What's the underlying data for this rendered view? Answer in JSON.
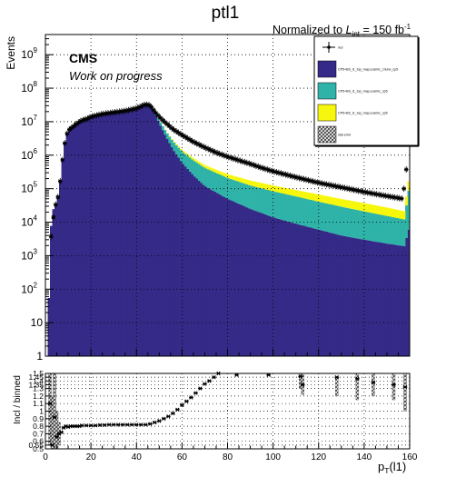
{
  "title": "ptl1",
  "lumi": {
    "prefix": "Normalized to ",
    "L": "L",
    "sub": "int",
    "value": " = 150 fb",
    "sup": "-1"
  },
  "cms_label": "CMS",
  "cms_sublabel": "Work on progress",
  "top_ylabel": "Events",
  "ratio_ylabel": "Incl / binned",
  "xlabel": {
    "p": "p",
    "sub": "T",
    "rest": "(l1)"
  },
  "legend": [
    {
      "label": "incl",
      "style": "marker",
      "color": "#000000"
    },
    {
      "label": "CP5+BS_l1_top_map,cosmic_1/lunv_cp5",
      "style": "box",
      "color": "#352a87"
    },
    {
      "label": "CP5+BS_l1_top_map,cosmic_cp5",
      "style": "box",
      "color": "#2fb3a8"
    },
    {
      "label": "CP5+BS_l1_top_map,cosmic_cp5",
      "style": "box",
      "color": "#f7f70d"
    },
    {
      "label": "stat error",
      "style": "hatch",
      "color": "#555555"
    }
  ],
  "chart_data": [
    {
      "type": "bar",
      "subtype": "stacked-histogram-log",
      "x": {
        "min": 0,
        "max": 160,
        "bin_width": 1
      },
      "ylim": [
        1,
        4000000000.0
      ],
      "ylog": true,
      "y_ticks": [
        {
          "v": 1,
          "label": "1"
        },
        {
          "v": 10,
          "label": "10"
        },
        {
          "v": 100,
          "label": "10",
          "exp": "2"
        },
        {
          "v": 1000,
          "label": "10",
          "exp": "3"
        },
        {
          "v": 10000,
          "label": "10",
          "exp": "4"
        },
        {
          "v": 100000,
          "label": "10",
          "exp": "5"
        },
        {
          "v": 1000000,
          "label": "10",
          "exp": "6"
        },
        {
          "v": 10000000,
          "label": "10",
          "exp": "7"
        },
        {
          "v": 100000000,
          "label": "10",
          "exp": "8"
        },
        {
          "v": 1000000000,
          "label": "10",
          "exp": "9"
        }
      ],
      "grid": true,
      "series": [
        {
          "name": "CP5+BS_l1_top_map,cosmic_1/lunv_cp5",
          "color": "#352a87",
          "knots": [
            [
              0,
              1
            ],
            [
              1,
              1
            ],
            [
              2,
              3000
            ],
            [
              3,
              20000
            ],
            [
              4,
              30000
            ],
            [
              5,
              40000
            ],
            [
              6,
              80000
            ],
            [
              7,
              350000
            ],
            [
              8,
              1500000
            ],
            [
              9,
              3500000
            ],
            [
              10,
              5500000
            ],
            [
              12,
              7000000
            ],
            [
              14,
              9000000
            ],
            [
              16,
              11000000
            ],
            [
              18,
              12000000
            ],
            [
              20,
              14000000
            ],
            [
              25,
              17000000
            ],
            [
              30,
              19000000
            ],
            [
              35,
              21000000
            ],
            [
              40,
              25000000
            ],
            [
              44,
              33000000
            ],
            [
              46,
              30000000
            ],
            [
              48,
              18000000
            ],
            [
              50,
              9000000
            ],
            [
              53,
              3500000
            ],
            [
              56,
              1500000
            ],
            [
              60,
              600000
            ],
            [
              65,
              250000
            ],
            [
              70,
              120000
            ],
            [
              80,
              50000
            ],
            [
              90,
              25000
            ],
            [
              100,
              14000
            ],
            [
              110,
              9000
            ],
            [
              120,
              6000
            ],
            [
              130,
              4000
            ],
            [
              140,
              3000
            ],
            [
              150,
              2300
            ],
            [
              158,
              1900
            ],
            [
              159,
              6000
            ],
            [
              160,
              6000
            ]
          ]
        },
        {
          "name": "CP5+BS_l1_top_map,cosmic_cp5",
          "color": "#2fb3a8",
          "knots": [
            [
              44,
              0
            ],
            [
              46,
              1000000
            ],
            [
              48,
              2000000
            ],
            [
              50,
              2000000
            ],
            [
              55,
              1200000
            ],
            [
              60,
              700000
            ],
            [
              70,
              300000
            ],
            [
              80,
              160000
            ],
            [
              90,
              100000
            ],
            [
              100,
              70000
            ],
            [
              110,
              50000
            ],
            [
              120,
              35000
            ],
            [
              130,
              25000
            ],
            [
              140,
              18000
            ],
            [
              150,
              13000
            ],
            [
              158,
              10000
            ],
            [
              159,
              80000
            ],
            [
              160,
              80000
            ]
          ]
        },
        {
          "name": "CP5+BS_l1_top_map,cosmic_cp5",
          "color": "#f7f70d",
          "knots": [
            [
              44,
              0
            ],
            [
              48,
              100000
            ],
            [
              55,
              150000
            ],
            [
              60,
              120000
            ],
            [
              70,
              80000
            ],
            [
              80,
              60000
            ],
            [
              90,
              50000
            ],
            [
              100,
              40000
            ],
            [
              110,
              32000
            ],
            [
              120,
              26000
            ],
            [
              130,
              20000
            ],
            [
              140,
              16000
            ],
            [
              150,
              12000
            ],
            [
              158,
              9000
            ],
            [
              159,
              80000
            ],
            [
              160,
              80000
            ]
          ]
        }
      ],
      "points": {
        "name": "incl",
        "knots": [
          [
            2,
            2000
          ],
          [
            3,
            7000
          ],
          [
            4,
            28000
          ],
          [
            5,
            40000
          ],
          [
            6,
            80000
          ],
          [
            7,
            350000
          ],
          [
            8,
            1500000
          ],
          [
            9,
            3500000
          ],
          [
            10,
            5500000
          ],
          [
            12,
            7000000
          ],
          [
            14,
            9000000
          ],
          [
            16,
            11000000
          ],
          [
            18,
            12000000
          ],
          [
            20,
            14000000
          ],
          [
            25,
            17000000
          ],
          [
            30,
            19000000
          ],
          [
            35,
            21000000
          ],
          [
            40,
            25000000
          ],
          [
            44,
            33000000
          ],
          [
            46,
            31000000
          ],
          [
            48,
            20000000
          ],
          [
            50,
            14000000
          ],
          [
            53,
            9000000
          ],
          [
            56,
            6000000
          ],
          [
            60,
            4000000
          ],
          [
            65,
            2500000
          ],
          [
            70,
            1700000
          ],
          [
            75,
            1200000
          ],
          [
            80,
            900000
          ],
          [
            85,
            700000
          ],
          [
            90,
            550000
          ],
          [
            95,
            420000
          ],
          [
            100,
            330000
          ],
          [
            110,
            220000
          ],
          [
            120,
            150000
          ],
          [
            130,
            110000
          ],
          [
            140,
            80000
          ],
          [
            150,
            60000
          ],
          [
            157,
            50000
          ],
          [
            158,
            200000
          ],
          [
            159,
            700000
          ]
        ]
      }
    },
    {
      "type": "scatter",
      "subtype": "ratio",
      "x": {
        "min": 0,
        "max": 160
      },
      "xlabel": "p_T(l1)",
      "x_ticks": [
        0,
        20,
        40,
        60,
        80,
        100,
        120,
        140,
        160
      ],
      "ylim": [
        0.5,
        1.5
      ],
      "y_ticks": [
        "0.5",
        "0.55",
        "0.6",
        "0.7",
        "0.8",
        "0.9",
        "1",
        "1.1",
        "1.2",
        "1.3",
        "1.35",
        "1.4",
        "1.45",
        "1.5"
      ],
      "grid": true,
      "points": [
        [
          2,
          1.1
        ],
        [
          3,
          0.55
        ],
        [
          4,
          0.92
        ],
        [
          5,
          0.66
        ],
        [
          6,
          0.7
        ],
        [
          7,
          0.72
        ],
        [
          8,
          0.78
        ],
        [
          9,
          0.8
        ],
        [
          10,
          0.79
        ],
        [
          11,
          0.8
        ],
        [
          12,
          0.8
        ],
        [
          13,
          0.8
        ],
        [
          14,
          0.8
        ],
        [
          15,
          0.8
        ],
        [
          16,
          0.81
        ],
        [
          18,
          0.81
        ],
        [
          20,
          0.81
        ],
        [
          22,
          0.81
        ],
        [
          24,
          0.815
        ],
        [
          26,
          0.815
        ],
        [
          28,
          0.82
        ],
        [
          30,
          0.82
        ],
        [
          32,
          0.82
        ],
        [
          34,
          0.82
        ],
        [
          36,
          0.82
        ],
        [
          38,
          0.82
        ],
        [
          40,
          0.82
        ],
        [
          42,
          0.82
        ],
        [
          44,
          0.82
        ],
        [
          46,
          0.83
        ],
        [
          48,
          0.85
        ],
        [
          50,
          0.87
        ],
        [
          52,
          0.9
        ],
        [
          54,
          0.93
        ],
        [
          56,
          0.97
        ],
        [
          58,
          1.02
        ],
        [
          60,
          1.08
        ],
        [
          62,
          1.13
        ],
        [
          64,
          1.18
        ],
        [
          66,
          1.24
        ],
        [
          68,
          1.3
        ],
        [
          70,
          1.36
        ],
        [
          72,
          1.4
        ],
        [
          74,
          1.45
        ],
        [
          76,
          1.5
        ],
        [
          84,
          1.48
        ],
        [
          98,
          1.48
        ],
        [
          112,
          1.46
        ],
        [
          113,
          1.35
        ],
        [
          128,
          1.45
        ],
        [
          137,
          1.43
        ],
        [
          144,
          1.38
        ],
        [
          153,
          1.35
        ],
        [
          158,
          1.32
        ]
      ],
      "error_bars": [
        [
          2,
          0.55,
          1.5
        ],
        [
          3,
          0.5,
          1.2
        ],
        [
          4,
          0.5,
          1.5
        ],
        [
          5,
          0.5,
          1.0
        ],
        [
          6,
          0.55,
          0.85
        ],
        [
          112,
          1.3,
          1.5
        ],
        [
          113,
          1.22,
          1.48
        ],
        [
          128,
          1.2,
          1.45
        ],
        [
          137,
          1.15,
          1.5
        ],
        [
          144,
          1.2,
          1.5
        ],
        [
          153,
          1.15,
          1.5
        ],
        [
          158,
          1.0,
          1.5
        ]
      ]
    }
  ]
}
